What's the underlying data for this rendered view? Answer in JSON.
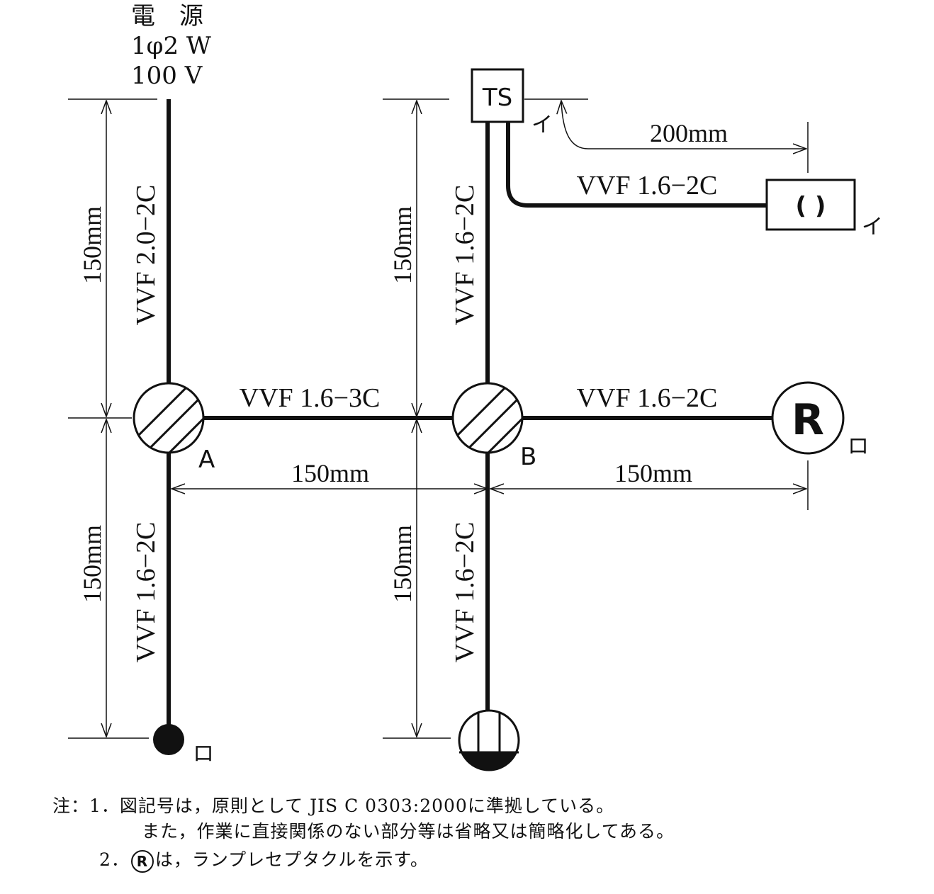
{
  "source": {
    "line1": "電　源",
    "line2": "1φ2 W",
    "line3": "100 V"
  },
  "cables": {
    "source_to_a": "VVF 2.0−2C",
    "a_to_b": "VVF 1.6−3C",
    "b_to_ts": "VVF 1.6−2C",
    "ts_to_pilot": "VVF 1.6−2C",
    "b_to_receptacle": "VVF 1.6−2C",
    "a_to_dot": "VVF 1.6−2C",
    "b_to_outlet": "VVF 1.6−2C"
  },
  "dimensions": {
    "left_top": "150mm",
    "left_bottom": "150mm",
    "mid_top": "150mm",
    "mid_bottom": "150mm",
    "a_to_b": "150mm",
    "b_to_r": "150mm",
    "ts_to_pilot": "200mm"
  },
  "symbols": {
    "box_a_label": "A",
    "box_b_label": "B",
    "timer_switch": "TS",
    "pilot_lamp": "( )",
    "receptacle": "R",
    "mark_i_ts": "イ",
    "mark_i_pilot": "イ",
    "mark_ro_r": "ロ",
    "mark_ro_dot": "ロ"
  },
  "notes": {
    "prefix": "注：",
    "n1_num": "1．",
    "n1_line1": "図記号は，原則として JIS C 0303:2000に準拠している。",
    "n1_line2": "また，作業に直接関係のない部分等は省略又は簡略化してある。",
    "n2_num": "2．",
    "n2_symbol": "R",
    "n2_text": "は，ランプレセプタクルを示す。"
  }
}
